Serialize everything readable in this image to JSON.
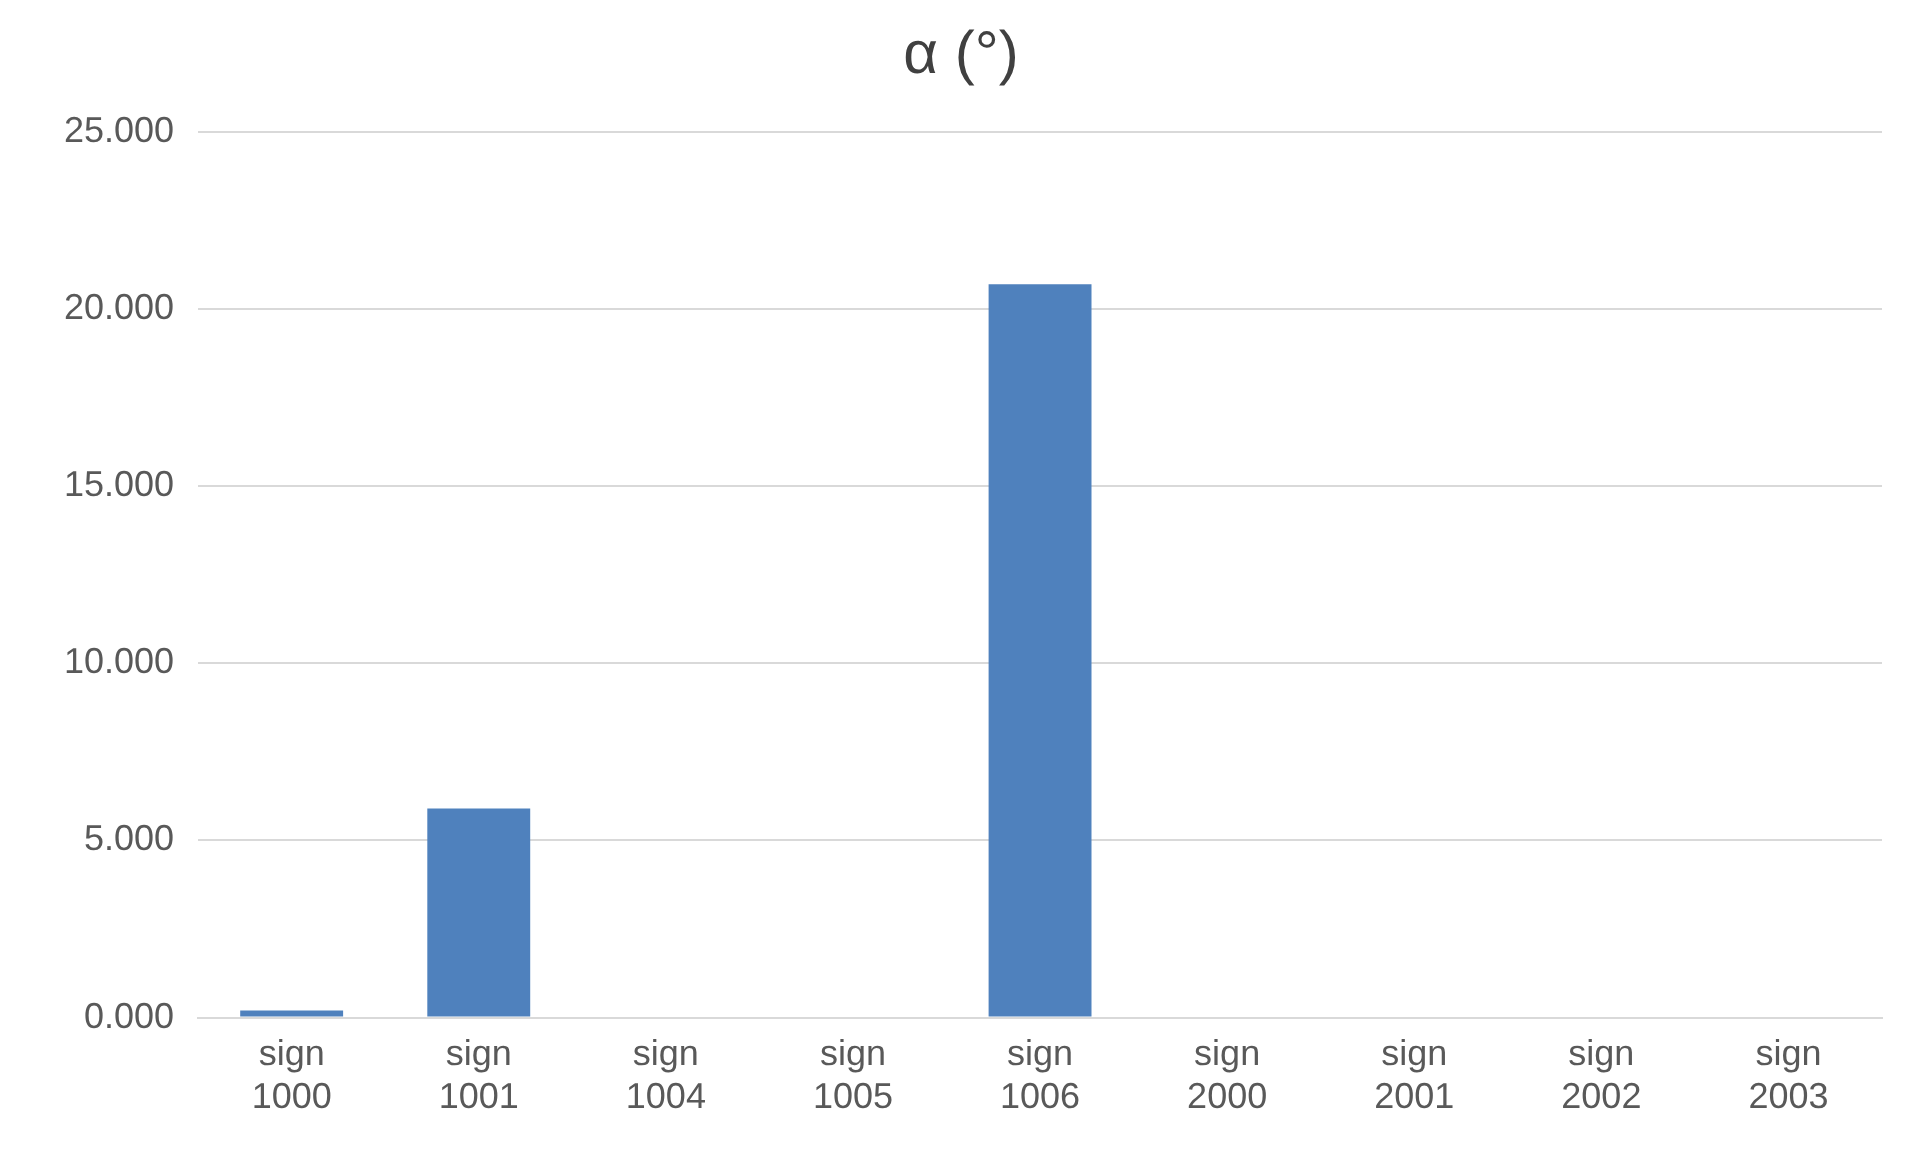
{
  "chart_data": {
    "type": "bar",
    "title": "α (°)",
    "categories": [
      "sign 1000",
      "sign 1001",
      "sign 1004",
      "sign 1005",
      "sign 1006",
      "sign 2000",
      "sign 2001",
      "sign 2002",
      "sign 2003"
    ],
    "values": [
      0.2,
      5.9,
      0,
      0,
      20.7,
      null,
      null,
      0,
      0
    ],
    "color": "#4f81bd",
    "ylim": [
      0,
      25
    ],
    "yticks": [
      {
        "value": 0,
        "label": "0.000"
      },
      {
        "value": 5,
        "label": "5.000"
      },
      {
        "value": 10,
        "label": "10.000"
      },
      {
        "value": 15,
        "label": "15.000"
      },
      {
        "value": 20,
        "label": "20.000"
      },
      {
        "value": 25,
        "label": "25.000"
      }
    ],
    "grid": "y",
    "legend": false
  }
}
